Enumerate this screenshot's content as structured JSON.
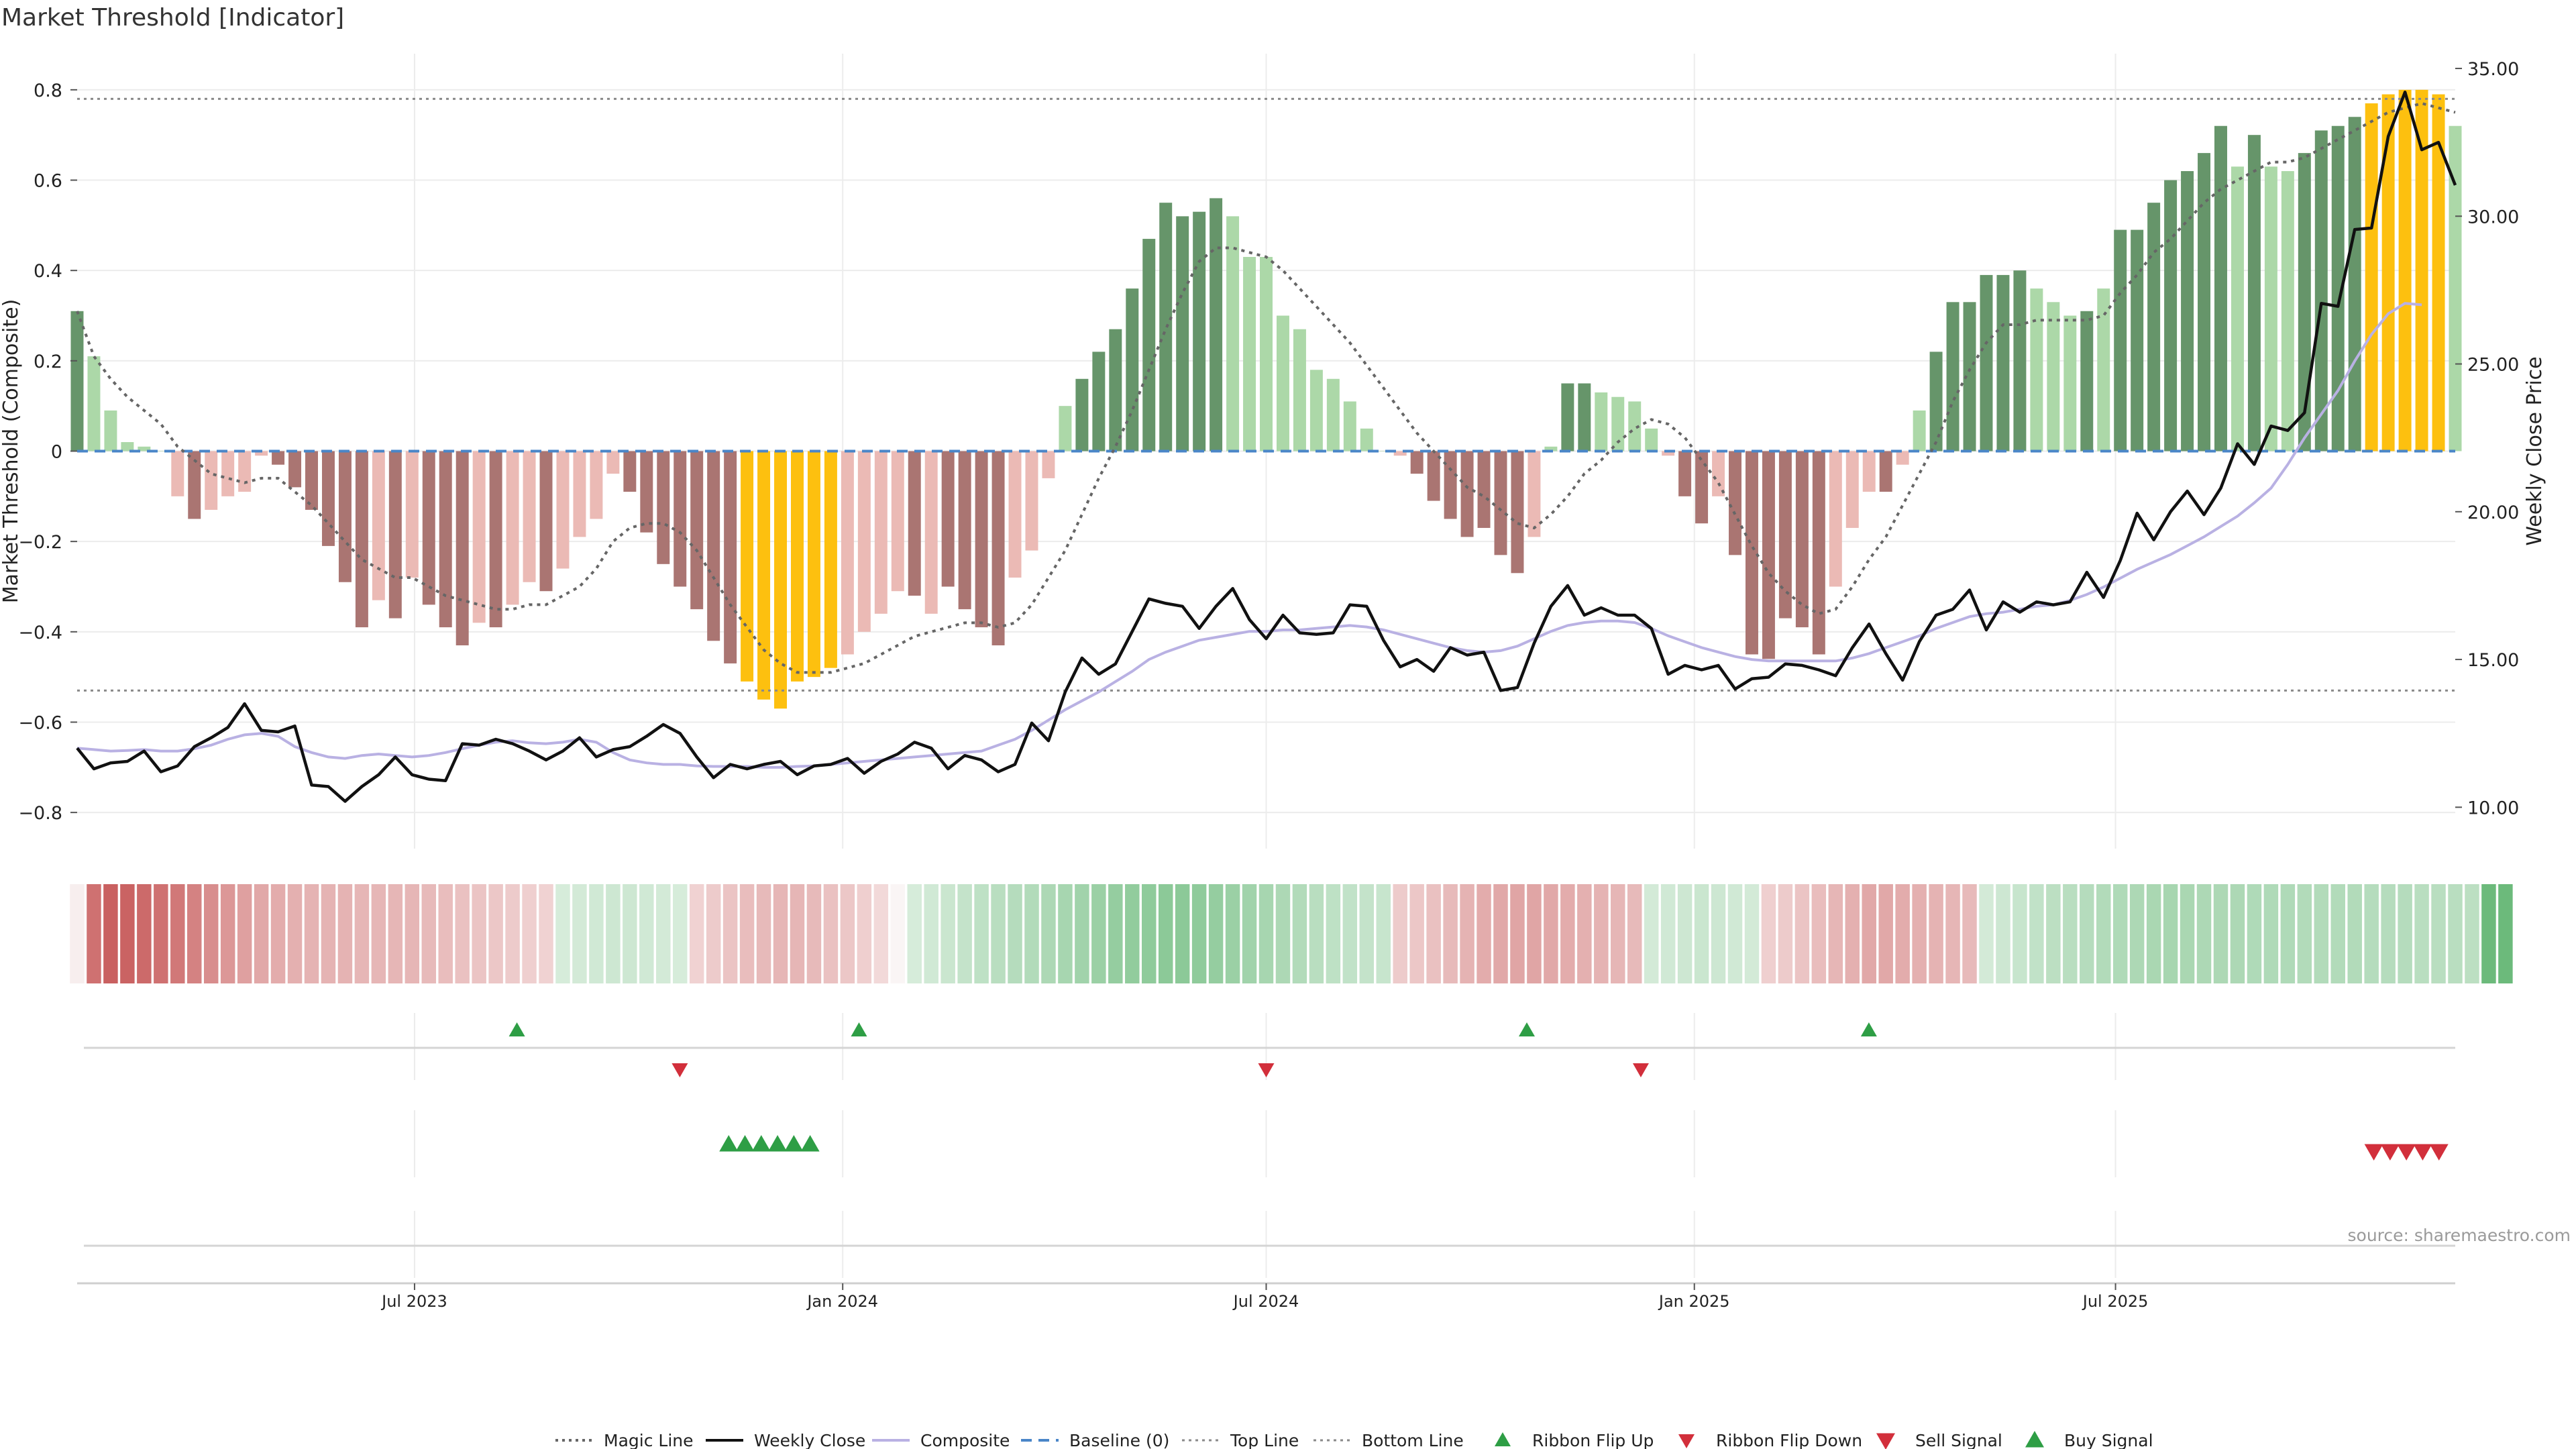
{
  "page": {
    "title": "Market Threshold [Indicator]",
    "source": "source: sharemaestro.com"
  },
  "colors": {
    "strong_pos": "#66956a",
    "weak_pos": "#acd8a8",
    "strong_neg": "#aa7572",
    "weak_neg": "#ebbab5",
    "extreme": "#fdc00f",
    "magic": "#666666",
    "close": "#111111",
    "composite": "#b9b1e3",
    "baseline": "#4a86c8",
    "threshold": "#8a8a8a",
    "ribbon_red": "#c45252",
    "ribbon_green": "#6cba7b",
    "ribbon_white": "#f7eeee",
    "signal_green": "#2e9e45",
    "signal_red": "#d22f3b",
    "grid": "#ececec"
  },
  "chart_data": {
    "type": "bar",
    "title": "Market Threshold [Indicator]",
    "ylabel_left": "Market Threshold (Composite)",
    "ylabel_right": "Weekly Close Price",
    "left_ylim": [
      -0.88,
      0.88
    ],
    "right_ylim": [
      8.6,
      35.5
    ],
    "left_ticks": [
      "0.8",
      "0.6",
      "0.4",
      "0.2",
      "0",
      "−0.2",
      "−0.4",
      "−0.6",
      "−0.8"
    ],
    "right_ticks": [
      "35.00",
      "30.00",
      "25.00",
      "20.00",
      "15.00",
      "10.00"
    ],
    "x_range": [
      "2023-02-06",
      "2025-11-24"
    ],
    "x_ticks": [
      {
        "date": "2023-07-01",
        "label": "Jul 2023"
      },
      {
        "date": "2024-01-01",
        "label": "Jan 2024"
      },
      {
        "date": "2024-07-01",
        "label": "Jul 2024"
      },
      {
        "date": "2025-01-01",
        "label": "Jan 2025"
      },
      {
        "date": "2025-07-01",
        "label": "Jul 2025"
      }
    ],
    "top_line": 0.78,
    "bottom_line": -0.53,
    "bars": {
      "values": [
        0.31,
        0.21,
        0.09,
        0.02,
        0.01,
        0.0,
        -0.1,
        -0.15,
        -0.13,
        -0.1,
        -0.09,
        -0.01,
        -0.03,
        -0.08,
        -0.13,
        -0.21,
        -0.29,
        -0.39,
        -0.33,
        -0.37,
        -0.28,
        -0.34,
        -0.39,
        -0.43,
        -0.38,
        -0.39,
        -0.34,
        -0.29,
        -0.31,
        -0.26,
        -0.19,
        -0.15,
        -0.05,
        -0.09,
        -0.18,
        -0.25,
        -0.3,
        -0.35,
        -0.42,
        -0.47,
        -0.51,
        -0.55,
        -0.57,
        -0.51,
        -0.5,
        -0.48,
        -0.45,
        -0.4,
        -0.36,
        -0.31,
        -0.32,
        -0.36,
        -0.3,
        -0.35,
        -0.39,
        -0.43,
        -0.28,
        -0.22,
        -0.06,
        0.1,
        0.16,
        0.22,
        0.27,
        0.36,
        0.47,
        0.55,
        0.52,
        0.53,
        0.56,
        0.52,
        0.43,
        0.43,
        0.3,
        0.27,
        0.18,
        0.16,
        0.11,
        0.05,
        0.0,
        -0.01,
        -0.05,
        -0.11,
        -0.15,
        -0.19,
        -0.17,
        -0.23,
        -0.27,
        -0.19,
        0.01,
        0.15,
        0.15,
        0.13,
        0.12,
        0.11,
        0.05,
        -0.01,
        -0.1,
        -0.16,
        -0.1,
        -0.23,
        -0.45,
        -0.46,
        -0.37,
        -0.39,
        -0.45,
        -0.3,
        -0.17,
        -0.09,
        -0.09,
        -0.03,
        0.09,
        0.22,
        0.33,
        0.33,
        0.39,
        0.39,
        0.4,
        0.36,
        0.33,
        0.3,
        0.31,
        0.36,
        0.49,
        0.49,
        0.55,
        0.6,
        0.62,
        0.66,
        0.72,
        0.63,
        0.7,
        0.63,
        0.62,
        0.66,
        0.71,
        0.72,
        0.74,
        0.77,
        0.79,
        0.8,
        0.8,
        0.79,
        0.72
      ],
      "categories": [
        "strong_pos",
        "weak_pos",
        "weak_pos",
        "weak_pos",
        "weak_pos",
        "weak_pos",
        "weak_neg",
        "strong_neg",
        "weak_neg",
        "weak_neg",
        "weak_neg",
        "weak_neg",
        "strong_neg",
        "strong_neg",
        "strong_neg",
        "strong_neg",
        "strong_neg",
        "strong_neg",
        "weak_neg",
        "strong_neg",
        "weak_neg",
        "strong_neg",
        "strong_neg",
        "strong_neg",
        "weak_neg",
        "strong_neg",
        "weak_neg",
        "weak_neg",
        "strong_neg",
        "weak_neg",
        "weak_neg",
        "weak_neg",
        "weak_neg",
        "strong_neg",
        "strong_neg",
        "strong_neg",
        "strong_neg",
        "strong_neg",
        "strong_neg",
        "strong_neg",
        "extreme",
        "extreme",
        "extreme",
        "extreme",
        "extreme",
        "extreme",
        "weak_neg",
        "weak_neg",
        "weak_neg",
        "weak_neg",
        "strong_neg",
        "weak_neg",
        "strong_neg",
        "strong_neg",
        "strong_neg",
        "strong_neg",
        "weak_neg",
        "weak_neg",
        "weak_neg",
        "weak_pos",
        "strong_pos",
        "strong_pos",
        "strong_pos",
        "strong_pos",
        "strong_pos",
        "strong_pos",
        "strong_pos",
        "strong_pos",
        "strong_pos",
        "weak_pos",
        "weak_pos",
        "weak_pos",
        "weak_pos",
        "weak_pos",
        "weak_pos",
        "weak_pos",
        "weak_pos",
        "weak_pos",
        "weak_pos",
        "weak_neg",
        "strong_neg",
        "strong_neg",
        "strong_neg",
        "strong_neg",
        "strong_neg",
        "strong_neg",
        "strong_neg",
        "weak_neg",
        "weak_pos",
        "strong_pos",
        "strong_pos",
        "weak_pos",
        "weak_pos",
        "weak_pos",
        "weak_pos",
        "weak_neg",
        "strong_neg",
        "strong_neg",
        "weak_neg",
        "strong_neg",
        "strong_neg",
        "strong_neg",
        "strong_neg",
        "strong_neg",
        "strong_neg",
        "weak_neg",
        "weak_neg",
        "weak_neg",
        "strong_neg",
        "weak_neg",
        "weak_pos",
        "strong_pos",
        "strong_pos",
        "strong_pos",
        "strong_pos",
        "strong_pos",
        "strong_pos",
        "weak_pos",
        "weak_pos",
        "weak_pos",
        "strong_pos",
        "weak_pos",
        "strong_pos",
        "strong_pos",
        "strong_pos",
        "strong_pos",
        "strong_pos",
        "strong_pos",
        "strong_pos",
        "weak_pos",
        "strong_pos",
        "weak_pos",
        "weak_pos",
        "strong_pos",
        "strong_pos",
        "strong_pos",
        "strong_pos",
        "extreme",
        "extreme",
        "extreme",
        "extreme",
        "extreme",
        "weak_pos"
      ]
    },
    "magic_line": [
      0.31,
      0.21,
      0.16,
      0.12,
      0.09,
      0.06,
      0.01,
      -0.02,
      -0.05,
      -0.06,
      -0.07,
      -0.06,
      -0.06,
      -0.09,
      -0.12,
      -0.16,
      -0.2,
      -0.24,
      -0.26,
      -0.28,
      -0.28,
      -0.3,
      -0.32,
      -0.33,
      -0.34,
      -0.35,
      -0.35,
      -0.34,
      -0.34,
      -0.32,
      -0.3,
      -0.26,
      -0.2,
      -0.17,
      -0.16,
      -0.16,
      -0.18,
      -0.22,
      -0.28,
      -0.34,
      -0.39,
      -0.44,
      -0.47,
      -0.49,
      -0.49,
      -0.49,
      -0.48,
      -0.47,
      -0.45,
      -0.43,
      -0.41,
      -0.4,
      -0.39,
      -0.38,
      -0.38,
      -0.39,
      -0.38,
      -0.34,
      -0.28,
      -0.22,
      -0.14,
      -0.06,
      0.01,
      0.09,
      0.18,
      0.27,
      0.35,
      0.42,
      0.45,
      0.45,
      0.44,
      0.43,
      0.4,
      0.36,
      0.32,
      0.28,
      0.24,
      0.19,
      0.14,
      0.09,
      0.04,
      0.0,
      -0.04,
      -0.08,
      -0.1,
      -0.13,
      -0.16,
      -0.17,
      -0.14,
      -0.1,
      -0.05,
      -0.02,
      0.02,
      0.05,
      0.07,
      0.06,
      0.03,
      -0.02,
      -0.07,
      -0.14,
      -0.21,
      -0.27,
      -0.31,
      -0.34,
      -0.36,
      -0.35,
      -0.3,
      -0.24,
      -0.19,
      -0.12,
      -0.05,
      0.02,
      0.11,
      0.18,
      0.24,
      0.28,
      0.28,
      0.29,
      0.29,
      0.29,
      0.29,
      0.3,
      0.35,
      0.39,
      0.44,
      0.47,
      0.51,
      0.55,
      0.58,
      0.6,
      0.62,
      0.64,
      0.64,
      0.65,
      0.67,
      0.69,
      0.71,
      0.73,
      0.75,
      0.76,
      0.77,
      0.76,
      0.75
    ],
    "weekly_close": [
      12.0,
      11.3,
      11.5,
      11.55,
      11.9,
      11.2,
      11.4,
      12.05,
      12.35,
      12.7,
      13.5,
      12.6,
      12.55,
      12.75,
      10.75,
      10.7,
      10.2,
      10.7,
      11.1,
      11.7,
      11.1,
      10.95,
      10.9,
      12.15,
      12.1,
      12.3,
      12.15,
      11.9,
      11.6,
      11.9,
      12.35,
      11.7,
      11.95,
      12.05,
      12.4,
      12.8,
      12.5,
      11.7,
      11.0,
      11.45,
      11.3,
      11.45,
      11.55,
      11.1,
      11.4,
      11.45,
      11.65,
      11.15,
      11.55,
      11.8,
      12.2,
      12.0,
      11.3,
      11.75,
      11.6,
      11.2,
      11.45,
      12.85,
      12.25,
      13.9,
      15.05,
      14.5,
      14.85,
      15.95,
      17.05,
      16.9,
      16.8,
      16.05,
      16.8,
      17.4,
      16.35,
      15.7,
      16.5,
      15.9,
      15.85,
      15.9,
      16.85,
      16.8,
      15.65,
      14.75,
      15.0,
      14.6,
      15.4,
      15.15,
      15.25,
      13.95,
      14.05,
      15.55,
      16.8,
      17.5,
      16.5,
      16.75,
      16.5,
      16.5,
      16.05,
      14.5,
      14.8,
      14.65,
      14.8,
      14.0,
      14.35,
      14.4,
      14.85,
      14.8,
      14.65,
      14.45,
      15.4,
      16.2,
      15.2,
      14.3,
      15.6,
      16.5,
      16.7,
      17.35,
      16.0,
      16.95,
      16.6,
      16.95,
      16.85,
      16.95,
      17.95,
      17.1,
      18.35,
      19.95,
      19.05,
      20.0,
      20.7,
      19.9,
      20.8,
      22.3,
      21.6,
      22.9,
      22.75,
      23.35,
      27.05,
      26.95,
      29.55,
      29.6,
      32.7,
      34.2,
      32.25,
      32.5,
      31.05
    ],
    "composite": [
      12.0,
      11.95,
      11.9,
      11.92,
      11.95,
      11.9,
      11.9,
      11.98,
      12.1,
      12.3,
      12.45,
      12.5,
      12.4,
      12.05,
      11.85,
      11.7,
      11.65,
      11.75,
      11.8,
      11.75,
      11.7,
      11.75,
      11.85,
      11.98,
      12.1,
      12.2,
      12.25,
      12.18,
      12.15,
      12.2,
      12.3,
      12.2,
      11.85,
      11.6,
      11.5,
      11.45,
      11.45,
      11.4,
      11.38,
      11.38,
      11.38,
      11.35,
      11.35,
      11.38,
      11.4,
      11.45,
      11.5,
      11.55,
      11.6,
      11.65,
      11.7,
      11.75,
      11.8,
      11.85,
      11.9,
      12.1,
      12.3,
      12.6,
      12.95,
      13.3,
      13.6,
      13.9,
      14.25,
      14.6,
      15.0,
      15.25,
      15.45,
      15.65,
      15.75,
      15.85,
      15.95,
      15.95,
      16.0,
      16.0,
      16.05,
      16.1,
      16.15,
      16.1,
      16.0,
      15.85,
      15.7,
      15.55,
      15.4,
      15.3,
      15.25,
      15.3,
      15.45,
      15.7,
      15.95,
      16.15,
      16.25,
      16.3,
      16.3,
      16.25,
      16.05,
      15.8,
      15.6,
      15.4,
      15.25,
      15.1,
      15.0,
      14.95,
      14.95,
      14.95,
      14.95,
      14.95,
      15.05,
      15.2,
      15.4,
      15.6,
      15.8,
      16.05,
      16.25,
      16.45,
      16.55,
      16.6,
      16.7,
      16.8,
      16.85,
      17.0,
      17.2,
      17.45,
      17.75,
      18.05,
      18.3,
      18.55,
      18.85,
      19.15,
      19.5,
      19.85,
      20.3,
      20.8,
      21.6,
      22.5,
      23.3,
      24.1,
      25.1,
      26.0,
      26.7,
      27.05,
      27.0
    ],
    "ribbon": {
      "tones": [
        "w",
        "r",
        "r",
        "r",
        "r",
        "r",
        "r",
        "r",
        "r",
        "r",
        "r",
        "r",
        "r",
        "r",
        "r",
        "r",
        "r",
        "r",
        "r",
        "r",
        "r",
        "r",
        "r",
        "r",
        "r",
        "r",
        "r",
        "r",
        "r",
        "g",
        "g",
        "g",
        "g",
        "g",
        "g",
        "g",
        "g",
        "r",
        "r",
        "r",
        "r",
        "r",
        "r",
        "r",
        "r",
        "r",
        "r",
        "r",
        "r",
        "w",
        "g",
        "g",
        "g",
        "g",
        "g",
        "g",
        "g",
        "g",
        "g",
        "g",
        "g",
        "g",
        "g",
        "g",
        "g",
        "g",
        "g",
        "g",
        "g",
        "g",
        "g",
        "g",
        "g",
        "g",
        "g",
        "g",
        "g",
        "g",
        "g",
        "r",
        "r",
        "r",
        "r",
        "r",
        "r",
        "r",
        "r",
        "r",
        "r",
        "r",
        "r",
        "r",
        "r",
        "r",
        "g",
        "g",
        "g",
        "g",
        "g",
        "g",
        "g",
        "r",
        "r",
        "r",
        "r",
        "r",
        "r",
        "r",
        "r",
        "r",
        "r",
        "r",
        "r",
        "r",
        "g",
        "g",
        "g",
        "g",
        "g",
        "g",
        "g",
        "g",
        "g",
        "g",
        "g",
        "g",
        "g",
        "g",
        "g",
        "g",
        "g",
        "g",
        "g",
        "g",
        "g",
        "g",
        "g",
        "g",
        "g",
        "g",
        "g",
        "g",
        "g",
        "g",
        "g",
        "g"
      ],
      "alphas": [
        1.0,
        0.82,
        0.92,
        0.9,
        0.86,
        0.82,
        0.78,
        0.72,
        0.66,
        0.6,
        0.55,
        0.5,
        0.48,
        0.46,
        0.44,
        0.44,
        0.44,
        0.42,
        0.42,
        0.42,
        0.42,
        0.4,
        0.38,
        0.36,
        0.34,
        0.32,
        0.3,
        0.28,
        0.26,
        0.28,
        0.3,
        0.32,
        0.34,
        0.34,
        0.32,
        0.3,
        0.28,
        0.26,
        0.3,
        0.34,
        0.38,
        0.4,
        0.42,
        0.42,
        0.4,
        0.36,
        0.32,
        0.28,
        0.22,
        0.6,
        0.28,
        0.32,
        0.36,
        0.4,
        0.44,
        0.48,
        0.5,
        0.52,
        0.56,
        0.6,
        0.64,
        0.68,
        0.72,
        0.74,
        0.76,
        0.78,
        0.78,
        0.76,
        0.72,
        0.68,
        0.64,
        0.6,
        0.56,
        0.52,
        0.48,
        0.44,
        0.42,
        0.4,
        0.38,
        0.3,
        0.32,
        0.36,
        0.4,
        0.44,
        0.48,
        0.5,
        0.52,
        0.52,
        0.5,
        0.48,
        0.46,
        0.44,
        0.42,
        0.4,
        0.3,
        0.32,
        0.34,
        0.36,
        0.34,
        0.32,
        0.3,
        0.28,
        0.3,
        0.34,
        0.38,
        0.42,
        0.46,
        0.5,
        0.5,
        0.48,
        0.46,
        0.44,
        0.42,
        0.4,
        0.3,
        0.34,
        0.38,
        0.42,
        0.46,
        0.48,
        0.5,
        0.52,
        0.54,
        0.56,
        0.58,
        0.6,
        0.58,
        0.56,
        0.56,
        0.56,
        0.54,
        0.54,
        0.54,
        0.52,
        0.52,
        0.52,
        0.52,
        0.5,
        0.5,
        0.5,
        0.48,
        0.48,
        0.48,
        0.46
      ]
    },
    "ribbon_flip_up": [
      "2023-08-14",
      "2024-01-08",
      "2024-10-21",
      "2025-03-17"
    ],
    "ribbon_flip_down": [
      "2023-10-23",
      "2024-07-01",
      "2024-12-09"
    ],
    "buy_signals": [
      "2023-11-13",
      "2023-11-20",
      "2023-11-27",
      "2023-12-04",
      "2023-12-11",
      "2023-12-18"
    ],
    "sell_signals": [
      "2025-10-20",
      "2025-10-27",
      "2025-11-03",
      "2025-11-10",
      "2025-11-17"
    ],
    "legend": [
      {
        "label": "Magic Line",
        "kind": "dotted"
      },
      {
        "label": "Weekly Close",
        "kind": "solid"
      },
      {
        "label": "Composite",
        "kind": "composite"
      },
      {
        "label": "Baseline (0)",
        "kind": "dashed"
      },
      {
        "label": "Top Line",
        "kind": "dot-light"
      },
      {
        "label": "Bottom Line",
        "kind": "dot-light"
      },
      {
        "label": "Ribbon Flip Up",
        "kind": "tri-up-small"
      },
      {
        "label": "Ribbon Flip Down",
        "kind": "tri-down-small"
      },
      {
        "label": "Sell Signal",
        "kind": "tri-down"
      },
      {
        "label": "Buy Signal",
        "kind": "tri-up"
      }
    ],
    "legend_position": "bottom-center"
  }
}
